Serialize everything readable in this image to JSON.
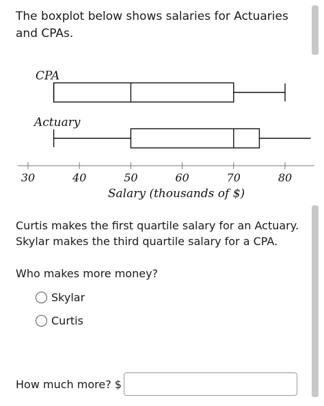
{
  "question": {
    "intro": "The boxplot below shows salaries for Actuaries and CPAs.",
    "statement": "Curtis makes the first quartile salary for an Actuary. Skylar makes the third quartile salary for a CPA.",
    "prompt": "Who makes more money?",
    "options": [
      {
        "label": "Skylar",
        "selected": false
      },
      {
        "label": "Curtis",
        "selected": false
      }
    ],
    "amount_prompt": "How much more? $",
    "amount_value": ""
  },
  "chart_data": {
    "type": "boxplot",
    "xlabel": "Salary (thousands of $)",
    "xlim": [
      30,
      85
    ],
    "ticks": [
      30,
      40,
      50,
      60,
      70,
      80
    ],
    "series": [
      {
        "name": "CPA",
        "min": 35,
        "q1": 35,
        "median": 50,
        "q3": 70,
        "max": 80
      },
      {
        "name": "Actuary",
        "min": 35,
        "q1": 50,
        "median": 70,
        "q3": 75,
        "max": 85
      }
    ]
  },
  "colors": {
    "line": "#111111",
    "scrollbar": "#c8c8c8"
  }
}
